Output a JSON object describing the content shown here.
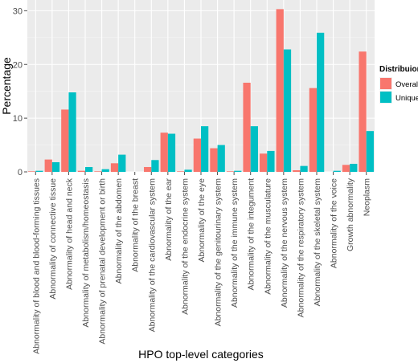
{
  "chart_data": {
    "type": "bar",
    "xlabel": "HPO top-level categories",
    "ylabel": "Percentage",
    "ylim": [
      0,
      32
    ],
    "yticks": [
      0,
      10,
      20,
      30
    ],
    "grid": true,
    "legend_title": "Distribuion",
    "legend_position": "right",
    "categories": [
      "Abnormality of  blood and blood-forming tissues",
      "Abnormality of connective tissue",
      "Abnormality of head and neck",
      "Abnormality of metabolism/homeostasis",
      "Abnormality of prenatal development or birth",
      "Abnormality of the abdomen",
      "Abnormality of the breast",
      "Abnormality of the cardiovascular system",
      "Abnormality of the ear",
      "Abnormality of the endocrine system",
      "Abnormality of the eye",
      "Abnormality of the genitourinary system",
      "Abnormality of the immune system",
      "Abnormality of the integument",
      "Abnormality of the musculature",
      "Abnormality of the nervous system",
      "Abnormality of the respiratory system",
      "Abnormality of the skeletal system",
      "Abnormality of the voice",
      "Growth abnormality",
      "Neoplasm"
    ],
    "series": [
      {
        "name": "Overall",
        "color": "#F8766D",
        "values": [
          0.1,
          2.3,
          11.6,
          0.2,
          0.1,
          1.6,
          0.0,
          0.9,
          7.3,
          0.1,
          6.2,
          4.4,
          0.1,
          16.6,
          3.4,
          30.3,
          0.3,
          15.6,
          0.0,
          1.3,
          22.4
        ]
      },
      {
        "name": "Unique",
        "color": "#00BFC4",
        "values": [
          0.2,
          1.8,
          14.8,
          0.9,
          0.5,
          3.2,
          0.0,
          2.2,
          7.1,
          0.4,
          8.5,
          5.0,
          0.2,
          8.5,
          3.9,
          22.8,
          1.1,
          25.9,
          0.2,
          1.5,
          7.6
        ]
      }
    ]
  }
}
